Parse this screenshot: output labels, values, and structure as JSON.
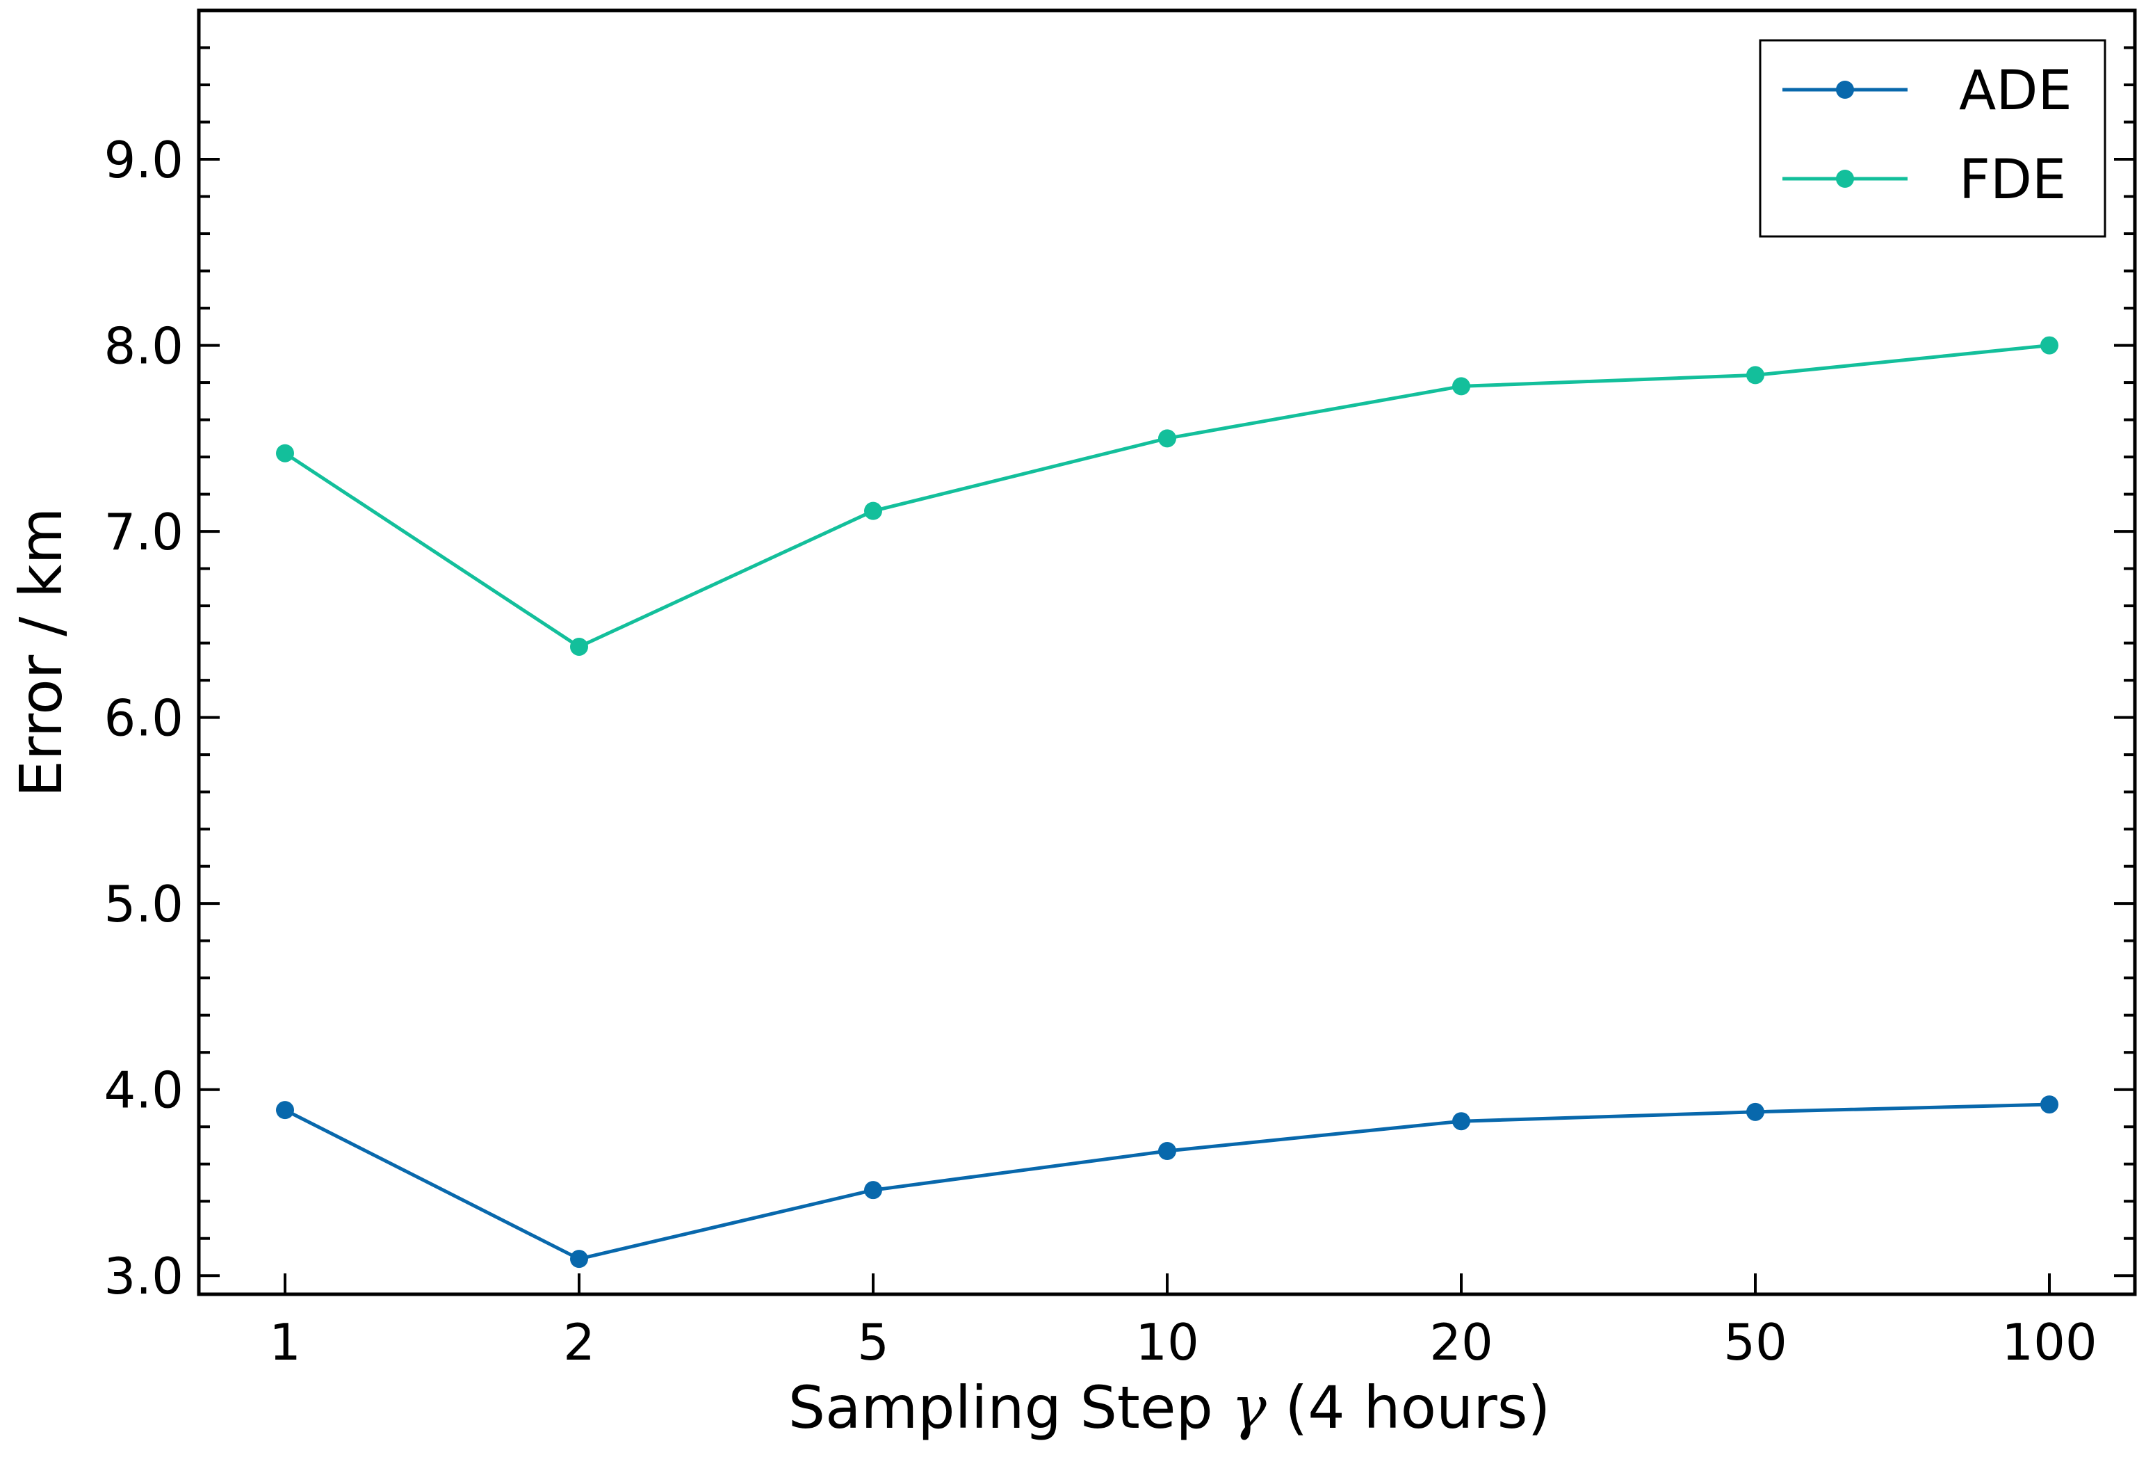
{
  "chart_data": {
    "type": "line",
    "x": [
      "1",
      "2",
      "5",
      "10",
      "20",
      "50",
      "100"
    ],
    "series": [
      {
        "name": "ADE",
        "color": "#0868ac",
        "values": [
          3.89,
          3.09,
          3.46,
          3.67,
          3.83,
          3.88,
          3.92
        ]
      },
      {
        "name": "FDE",
        "color": "#13bf9b",
        "values": [
          7.42,
          6.38,
          7.11,
          7.5,
          7.78,
          7.84,
          8.0
        ]
      }
    ],
    "xlabel_main": "Sampling Step ",
    "xlabel_symbol": "γ",
    "xlabel_suffix": "  (4 hours)",
    "ylabel": "Error / km",
    "y_ticks": [
      "3.0",
      "4.0",
      "5.0",
      "6.0",
      "7.0",
      "8.0",
      "9.0"
    ],
    "ylim": [
      2.9,
      9.8
    ],
    "x_scale": "categorical-log",
    "grid": false,
    "legend_position": "top-right"
  }
}
